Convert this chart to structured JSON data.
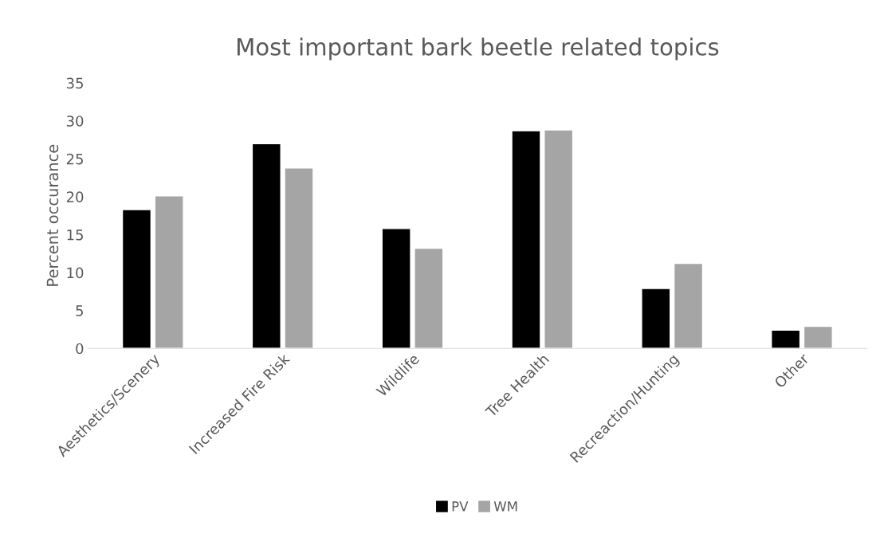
{
  "chart_data": {
    "type": "bar",
    "title": "Most important bark beetle related topics",
    "ylabel": "Percent occurance",
    "categories": [
      "Aesthetics/Scenery",
      "Increased Fire Risk",
      "Wildlife",
      "Tree Health",
      "Recreaction/Hunting",
      "Other"
    ],
    "series": [
      {
        "name": "PV",
        "color": "#000000",
        "values": [
          18.3,
          27.0,
          15.8,
          28.7,
          7.9,
          2.4
        ]
      },
      {
        "name": "WM",
        "color": "#a5a5a5",
        "values": [
          20.1,
          23.8,
          13.2,
          28.8,
          11.2,
          2.9
        ]
      }
    ],
    "ylim": [
      0,
      35
    ],
    "yticks": [
      0,
      5,
      10,
      15,
      20,
      25,
      30,
      35
    ],
    "grid": false,
    "legend": "bottom"
  }
}
